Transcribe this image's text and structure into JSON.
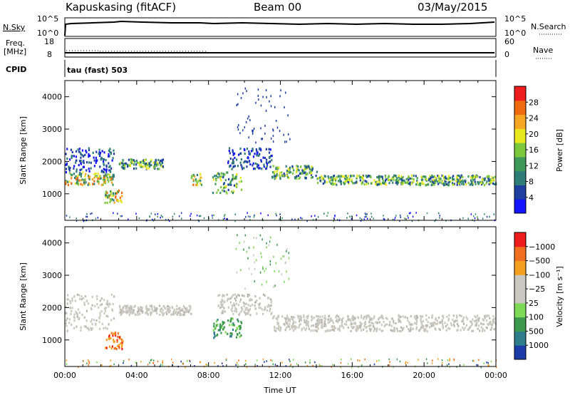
{
  "header": {
    "station": "Kapuskasing (fitACF)",
    "beam": "Beam 00",
    "date": "03/May/2015"
  },
  "params_panel": {
    "nsky_label": "N.Sky",
    "nsky_ticks": [
      "10^5",
      "10^0"
    ],
    "nsearch_label": "N.Search",
    "nsearch_ticks": [
      "10^5",
      "10^0"
    ],
    "freq_label_1": "Freq.",
    "freq_label_2": "[MHz]",
    "freq_ticks": [
      "18",
      "8"
    ],
    "nave_label": "Nave",
    "nave_ticks": [
      "60",
      "0"
    ],
    "cpid_label": "CPID",
    "cpid_value": "tau (fast) 503"
  },
  "chart_data": [
    {
      "type": "heatmap",
      "name": "power-panel",
      "ylabel": "Slant Range [km]",
      "yticks": [
        "1000",
        "2000",
        "3000",
        "4000"
      ],
      "ylim": [
        180,
        4500
      ],
      "xlim": [
        0,
        24
      ],
      "colorbar_label": "Power [dB]",
      "colorbar_ticks": [
        "4",
        "8",
        "12",
        "16",
        "20",
        "24",
        "28"
      ],
      "colorbar_colors": [
        "#1414ff",
        "#1e3ea0",
        "#2e7d76",
        "#3f9a5a",
        "#7cc83c",
        "#e8e81e",
        "#f5a623",
        "#f06a10",
        "#ee1c1c"
      ],
      "scatter_bands": [
        {
          "t_start": 0.0,
          "t_end": 2.7,
          "r_low": 1300,
          "r_high": 1700,
          "level": "high"
        },
        {
          "t_start": 0.0,
          "t_end": 2.7,
          "r_low": 1700,
          "r_high": 2450,
          "level": "low"
        },
        {
          "t_start": 2.2,
          "t_end": 3.2,
          "r_low": 750,
          "r_high": 1150,
          "level": "high"
        },
        {
          "t_start": 3.0,
          "t_end": 5.5,
          "r_low": 1800,
          "r_high": 2100,
          "level": "mid"
        },
        {
          "t_start": 7.0,
          "t_end": 7.6,
          "r_low": 1300,
          "r_high": 1650,
          "level": "high"
        },
        {
          "t_start": 8.2,
          "t_end": 9.8,
          "r_low": 1050,
          "r_high": 1700,
          "level": "mid"
        },
        {
          "t_start": 9.0,
          "t_end": 11.5,
          "r_low": 1800,
          "r_high": 2450,
          "level": "low"
        },
        {
          "t_start": 11.5,
          "t_end": 14.0,
          "r_low": 1500,
          "r_high": 1900,
          "level": "mid"
        },
        {
          "t_start": 14.0,
          "t_end": 24.0,
          "r_low": 1300,
          "r_high": 1600,
          "level": "mid"
        }
      ]
    },
    {
      "type": "heatmap",
      "name": "velocity-panel",
      "ylabel": "Slant Range [km]",
      "yticks": [
        "1000",
        "2000",
        "3000",
        "4000"
      ],
      "ylim": [
        180,
        4500
      ],
      "xlim": [
        0,
        24
      ],
      "xticks": [
        "00:00",
        "04:00",
        "08:00",
        "12:00",
        "16:00",
        "20:00",
        "00:00"
      ],
      "xlabel": "Time UT",
      "colorbar_label": "Velocity [m s⁻¹]",
      "colorbar_ticks": [
        "1000",
        "500",
        "100",
        "25",
        "−25",
        "−100",
        "−500",
        "−1000"
      ],
      "colorbar_colors": [
        "#1c3ca8",
        "#2e7d8a",
        "#3d9a4c",
        "#7ed957",
        "#c8c8c0",
        "#c8c8c0",
        "#f5a020",
        "#f07020",
        "#ee1c1c"
      ],
      "scatter_bands": [
        {
          "t_start": 0.0,
          "t_end": 2.7,
          "r_low": 1300,
          "r_high": 2450,
          "level": "ground"
        },
        {
          "t_start": 2.2,
          "t_end": 3.2,
          "r_low": 750,
          "r_high": 1300,
          "level": "negative"
        },
        {
          "t_start": 3.0,
          "t_end": 7.0,
          "r_low": 1800,
          "r_high": 2100,
          "level": "ground"
        },
        {
          "t_start": 8.2,
          "t_end": 9.8,
          "r_low": 1100,
          "r_high": 1700,
          "level": "positive"
        },
        {
          "t_start": 8.5,
          "t_end": 11.5,
          "r_low": 1800,
          "r_high": 2450,
          "level": "ground"
        },
        {
          "t_start": 11.5,
          "t_end": 24.0,
          "r_low": 1300,
          "r_high": 1800,
          "level": "ground"
        }
      ]
    }
  ]
}
